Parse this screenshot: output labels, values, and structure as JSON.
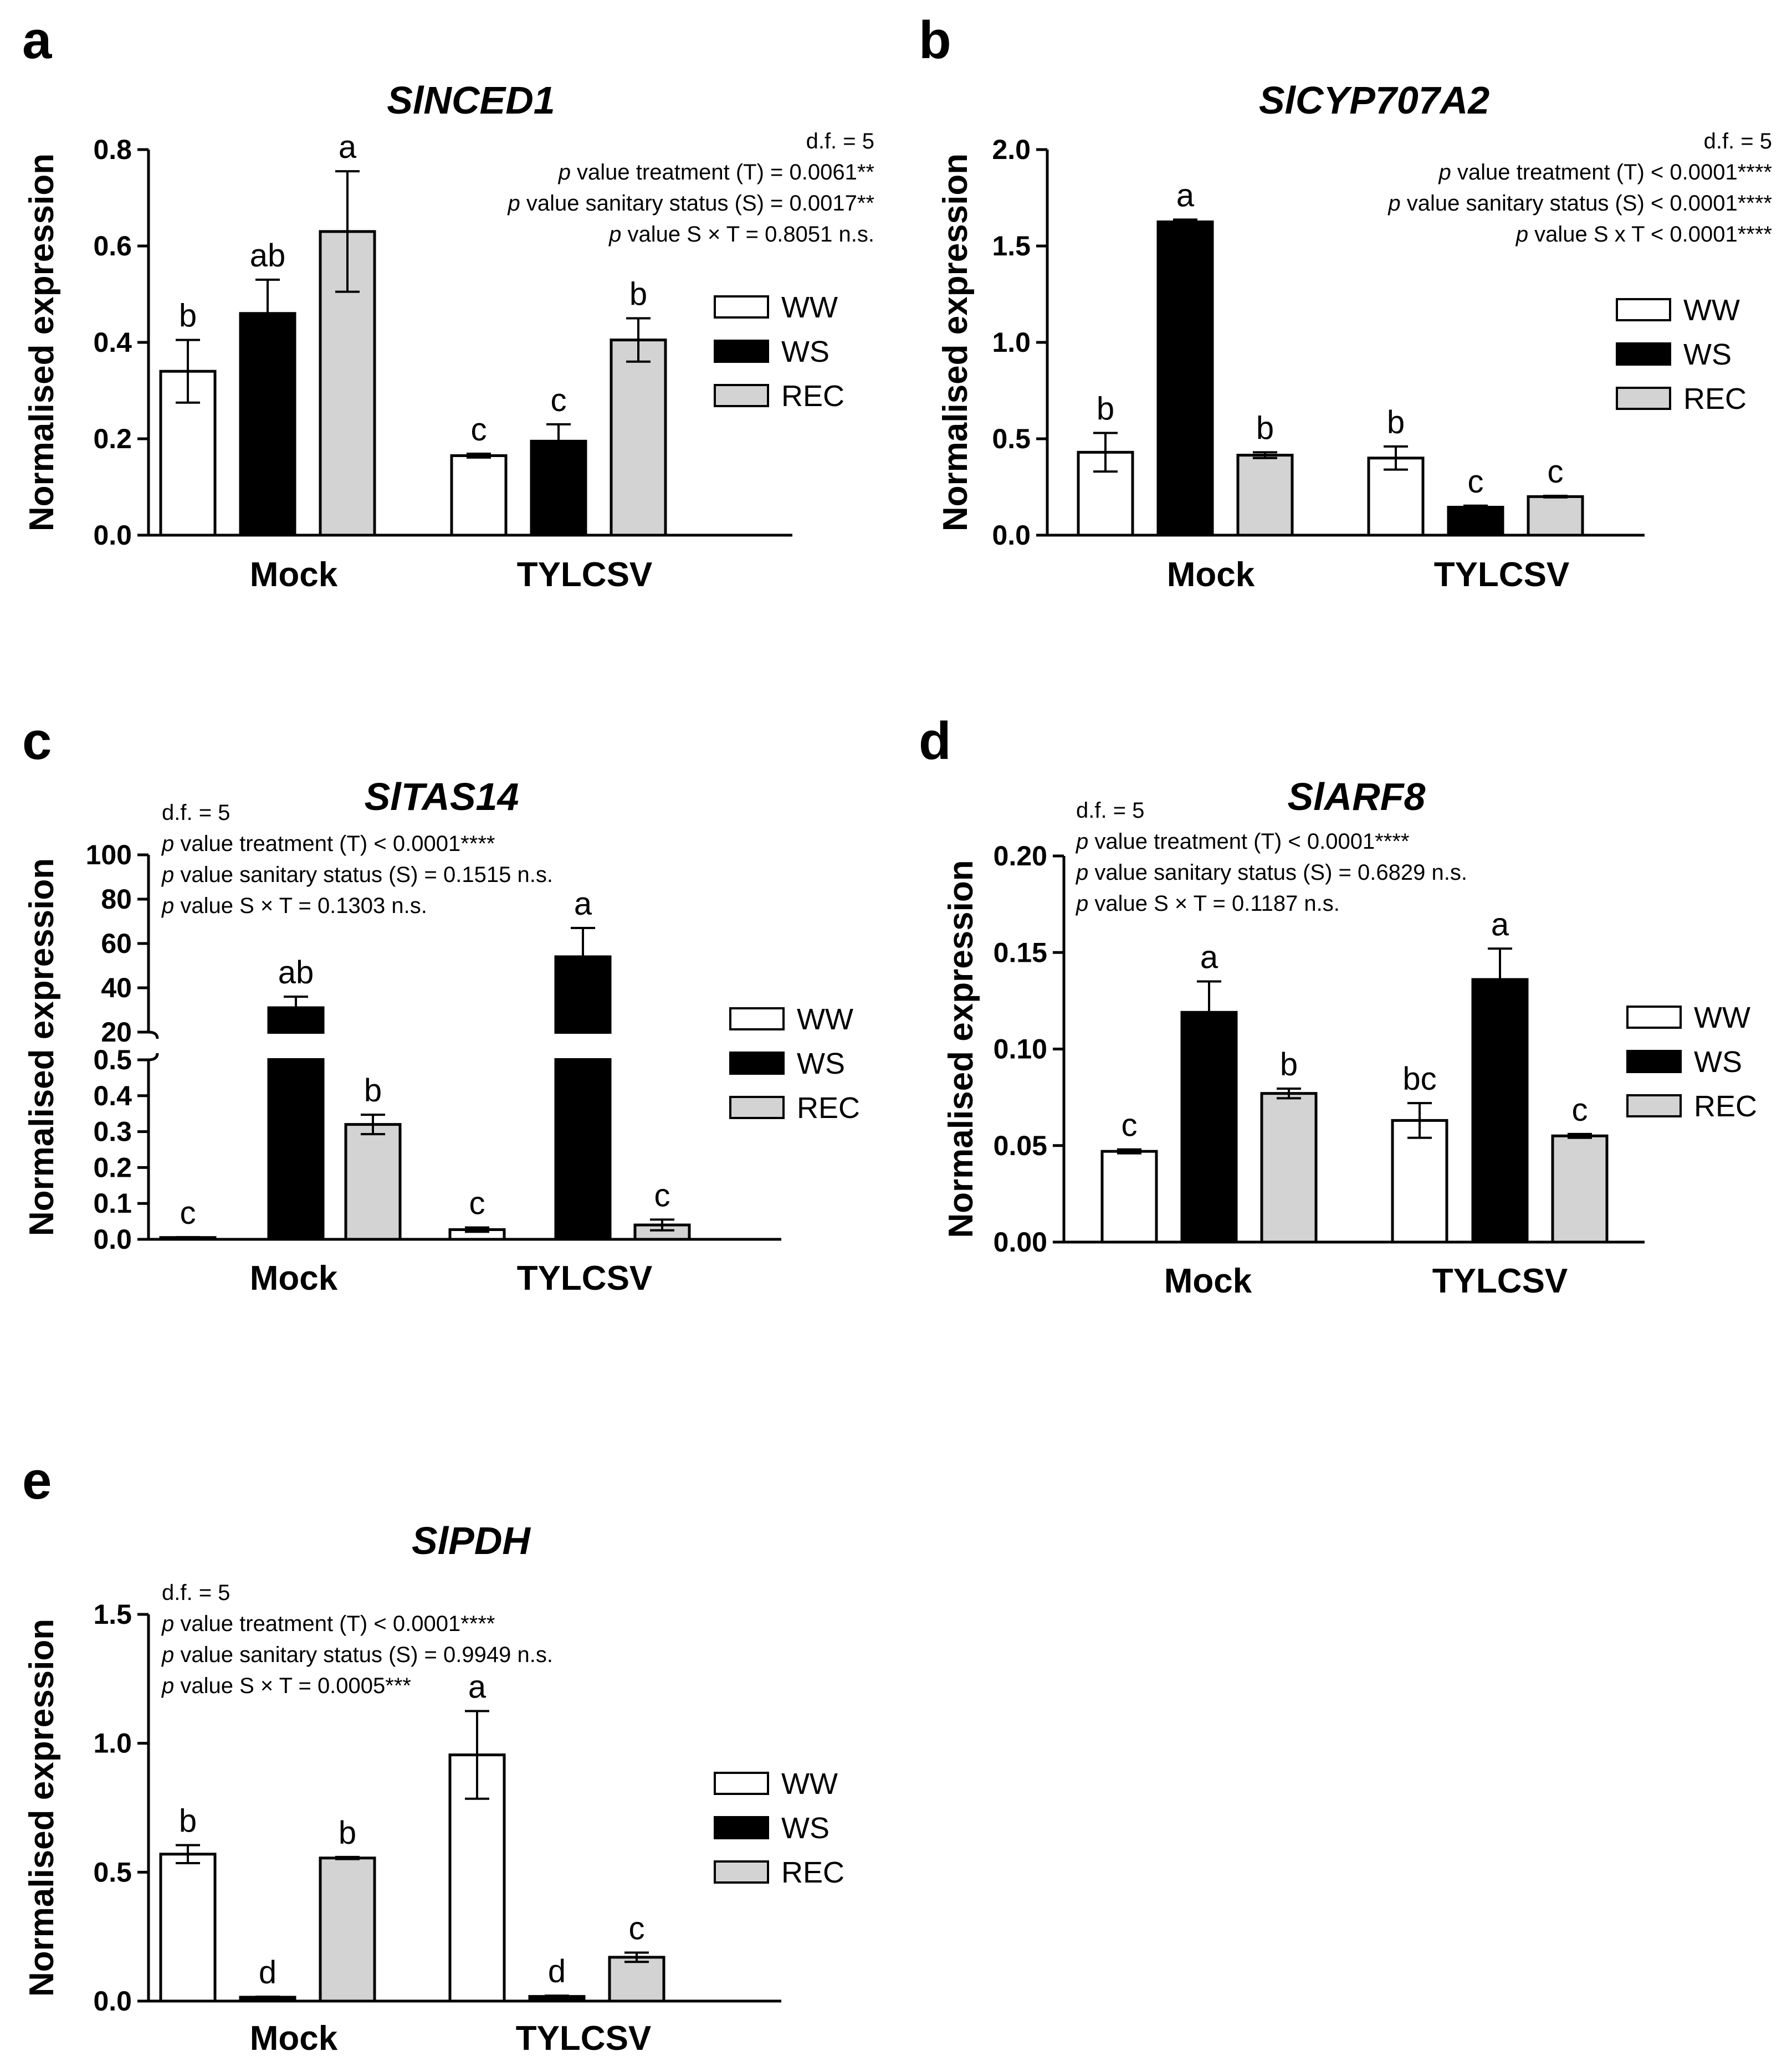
{
  "legend": [
    {
      "name": "WW",
      "color": "#ffffff"
    },
    {
      "name": "WS",
      "color": "#000000"
    },
    {
      "name": "REC",
      "color": "#d3d3d3"
    }
  ],
  "ylabel": "Normalised expression",
  "chart_data": [
    {
      "panel": "a",
      "type": "bar",
      "title": "SlNCED1",
      "ylabel": "Normalised expression",
      "categories": [
        "Mock",
        "TYLCSV"
      ],
      "ylim": [
        0,
        0.8
      ],
      "yticks": [
        "0.0",
        "0.2",
        "0.4",
        "0.6",
        "0.8"
      ],
      "series": [
        {
          "name": "WW",
          "values": [
            0.34,
            0.165
          ],
          "errors": [
            0.065,
            0.004
          ],
          "letters": [
            "b",
            "c"
          ]
        },
        {
          "name": "WS",
          "values": [
            0.46,
            0.195
          ],
          "errors": [
            0.07,
            0.035
          ],
          "letters": [
            "ab",
            "c"
          ]
        },
        {
          "name": "REC",
          "values": [
            0.63,
            0.405
          ],
          "errors": [
            0.125,
            0.045
          ],
          "letters": [
            "a",
            "b"
          ]
        }
      ],
      "stats": [
        "d.f. = 5",
        "value treatment (T) = 0.0061**",
        "value sanitary status (S) = 0.0017**",
        "value S × T = 0.8051 n.s."
      ]
    },
    {
      "panel": "b",
      "type": "bar",
      "title": "SlCYP707A2",
      "ylabel": "Normalised expression",
      "categories": [
        "Mock",
        "TYLCSV"
      ],
      "ylim": [
        0,
        2.0
      ],
      "yticks": [
        "0.0",
        "0.5",
        "1.0",
        "1.5",
        "2.0"
      ],
      "series": [
        {
          "name": "WW",
          "values": [
            0.43,
            0.4
          ],
          "errors": [
            0.1,
            0.06
          ],
          "letters": [
            "b",
            "b"
          ]
        },
        {
          "name": "WS",
          "values": [
            1.625,
            0.145
          ],
          "errors": [
            0.012,
            0.008
          ],
          "letters": [
            "a",
            "c"
          ]
        },
        {
          "name": "REC",
          "values": [
            0.415,
            0.2
          ],
          "errors": [
            0.015,
            0.004
          ],
          "letters": [
            "b",
            "c"
          ]
        }
      ],
      "stats": [
        "d.f. = 5",
        "value treatment (T) < 0.0001****",
        "value sanitary status (S) < 0.0001****",
        "value S x T < 0.0001****"
      ]
    },
    {
      "panel": "c",
      "type": "bar",
      "title": "SlTAS14",
      "ylabel": "Normalised expression",
      "categories": [
        "Mock",
        "TYLCSV"
      ],
      "broken_axis": true,
      "lower_ylim": [
        0,
        0.5
      ],
      "upper_ylim": [
        20,
        100
      ],
      "lower_yticks": [
        "0.0",
        "0.1",
        "0.2",
        "0.3",
        "0.4",
        "0.5"
      ],
      "upper_yticks": [
        "20",
        "40",
        "60",
        "80",
        "100"
      ],
      "series": [
        {
          "name": "WW",
          "values": [
            0.005,
            0.027
          ],
          "errors": [
            0.001,
            0.006
          ],
          "letters": [
            "c",
            "c"
          ]
        },
        {
          "name": "WS",
          "values": [
            31,
            54
          ],
          "errors": [
            5,
            13
          ],
          "letters": [
            "ab",
            "a"
          ]
        },
        {
          "name": "REC",
          "values": [
            0.32,
            0.04
          ],
          "errors": [
            0.027,
            0.015
          ],
          "letters": [
            "b",
            "c"
          ]
        }
      ],
      "stats": [
        "d.f. = 5",
        "value treatment (T) < 0.0001****",
        "value sanitary status (S) = 0.1515 n.s.",
        "value S × T = 0.1303 n.s."
      ]
    },
    {
      "panel": "d",
      "type": "bar",
      "title": "SlARF8",
      "ylabel": "Normalised expression",
      "categories": [
        "Mock",
        "TYLCSV"
      ],
      "ylim": [
        0,
        0.2
      ],
      "yticks": [
        "0.00",
        "0.05",
        "0.10",
        "0.15",
        "0.20"
      ],
      "series": [
        {
          "name": "WW",
          "values": [
            0.047,
            0.063
          ],
          "errors": [
            0.001,
            0.009
          ],
          "letters": [
            "c",
            "bc"
          ]
        },
        {
          "name": "WS",
          "values": [
            0.119,
            0.136
          ],
          "errors": [
            0.016,
            0.016
          ],
          "letters": [
            "a",
            "a"
          ]
        },
        {
          "name": "REC",
          "values": [
            0.077,
            0.055
          ],
          "errors": [
            0.0025,
            0.001
          ],
          "letters": [
            "b",
            "c"
          ]
        }
      ],
      "stats": [
        "d.f. = 5",
        "value treatment (T) < 0.0001****",
        "value sanitary status (S) = 0.6829 n.s.",
        "value S × T = 0.1187 n.s."
      ]
    },
    {
      "panel": "e",
      "type": "bar",
      "title": "SlPDH",
      "ylabel": "Normalised expression",
      "categories": [
        "Mock",
        "TYLCSV"
      ],
      "ylim": [
        0,
        1.5
      ],
      "yticks": [
        "0.0",
        "0.5",
        "1.0",
        "1.5"
      ],
      "series": [
        {
          "name": "WW",
          "values": [
            0.57,
            0.955
          ],
          "errors": [
            0.035,
            0.17
          ],
          "letters": [
            "b",
            "a"
          ]
        },
        {
          "name": "WS",
          "values": [
            0.015,
            0.018
          ],
          "errors": [
            0.002,
            0.003
          ],
          "letters": [
            "d",
            "d"
          ]
        },
        {
          "name": "REC",
          "values": [
            0.555,
            0.17
          ],
          "errors": [
            0.004,
            0.018
          ],
          "letters": [
            "b",
            "c"
          ]
        }
      ],
      "stats": [
        "d.f. = 5",
        "value treatment (T) < 0.0001****",
        "value sanitary status (S) = 0.9949 n.s.",
        "value S × T = 0.0005***"
      ]
    }
  ]
}
